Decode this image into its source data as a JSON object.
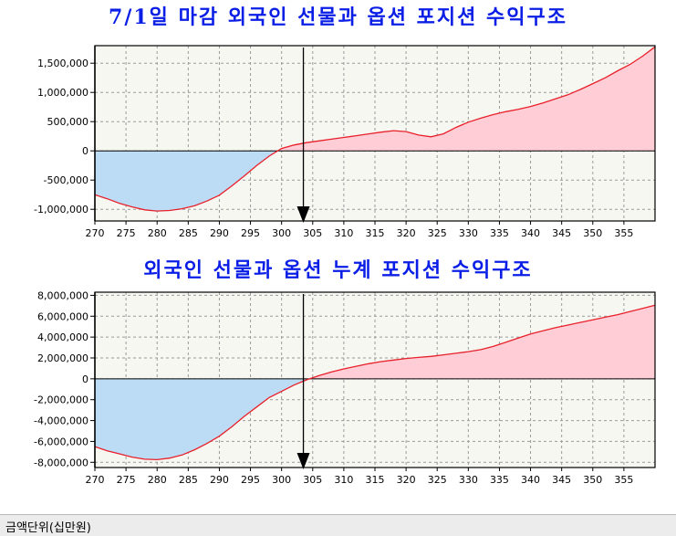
{
  "chart_data": [
    {
      "type": "area",
      "title": "7/1일 마감 외국인 선물과 옵션 포지션 수익구조",
      "xlabel": "",
      "ylabel": "",
      "xlim": [
        270,
        360
      ],
      "ylim": [
        -1200000,
        1800000
      ],
      "x_ticks": [
        270,
        275,
        280,
        285,
        290,
        295,
        300,
        305,
        310,
        315,
        320,
        325,
        330,
        335,
        340,
        345,
        350,
        355
      ],
      "y_ticks": [
        -1000000,
        -500000,
        0,
        500000,
        1000000,
        1500000
      ],
      "y_tick_labels": [
        "-1,000,000",
        "-500,000",
        "0",
        "500,000",
        "1,000,000",
        "1,500,000"
      ],
      "grid": true,
      "positive_fill": "#ffcdd6",
      "negative_fill": "#bcdcf5",
      "line_color": "#e8202a",
      "marker_x": 303.5,
      "series": [
        {
          "x": [
            270,
            272,
            274,
            276,
            278,
            280,
            282,
            284,
            286,
            288,
            290,
            292,
            294,
            296,
            298,
            300,
            302,
            304,
            306,
            308,
            310,
            312,
            314,
            316,
            318,
            320,
            322,
            324,
            326,
            328,
            330,
            332,
            334,
            336,
            338,
            340,
            342,
            344,
            346,
            348,
            350,
            352,
            354,
            356,
            358,
            360
          ],
          "values": [
            -750000,
            -820000,
            -900000,
            -960000,
            -1010000,
            -1030000,
            -1020000,
            -990000,
            -940000,
            -860000,
            -760000,
            -600000,
            -430000,
            -250000,
            -90000,
            40000,
            100000,
            140000,
            170000,
            200000,
            230000,
            260000,
            290000,
            320000,
            345000,
            330000,
            270000,
            240000,
            290000,
            400000,
            490000,
            560000,
            620000,
            670000,
            710000,
            760000,
            820000,
            890000,
            960000,
            1050000,
            1150000,
            1250000,
            1370000,
            1480000,
            1620000,
            1780000
          ]
        }
      ]
    },
    {
      "type": "area",
      "title": "외국인 선물과 옵션 누계 포지션 수익구조",
      "xlabel": "",
      "ylabel": "",
      "xlim": [
        270,
        360
      ],
      "ylim": [
        -8500000,
        8300000
      ],
      "x_ticks": [
        270,
        275,
        280,
        285,
        290,
        295,
        300,
        305,
        310,
        315,
        320,
        325,
        330,
        335,
        340,
        345,
        350,
        355
      ],
      "y_ticks": [
        -8000000,
        -6000000,
        -4000000,
        -2000000,
        0,
        2000000,
        4000000,
        6000000,
        8000000
      ],
      "y_tick_labels": [
        "-8,000,000",
        "-6,000,000",
        "-4,000,000",
        "-2,000,000",
        "0",
        "2,000,000",
        "4,000,000",
        "6,000,000",
        "8,000,000"
      ],
      "grid": true,
      "positive_fill": "#ffcdd6",
      "negative_fill": "#bcdcf5",
      "line_color": "#e8202a",
      "marker_x": 303.5,
      "series": [
        {
          "x": [
            270,
            272,
            274,
            276,
            278,
            280,
            282,
            284,
            286,
            288,
            290,
            292,
            294,
            296,
            298,
            300,
            302,
            304,
            306,
            308,
            310,
            312,
            314,
            316,
            318,
            320,
            322,
            324,
            326,
            328,
            330,
            332,
            334,
            336,
            338,
            340,
            342,
            344,
            346,
            348,
            350,
            352,
            354,
            356,
            358,
            360
          ],
          "values": [
            -6500000,
            -6900000,
            -7200000,
            -7500000,
            -7700000,
            -7750000,
            -7600000,
            -7300000,
            -6800000,
            -6200000,
            -5500000,
            -4600000,
            -3600000,
            -2700000,
            -1800000,
            -1200000,
            -600000,
            -100000,
            300000,
            650000,
            950000,
            1200000,
            1450000,
            1650000,
            1800000,
            1950000,
            2050000,
            2150000,
            2300000,
            2450000,
            2600000,
            2800000,
            3100000,
            3500000,
            3900000,
            4300000,
            4600000,
            4900000,
            5150000,
            5400000,
            5650000,
            5900000,
            6150000,
            6450000,
            6750000,
            7050000
          ]
        }
      ]
    }
  ],
  "status": {
    "unit_label": "금액단위(십만원)"
  }
}
